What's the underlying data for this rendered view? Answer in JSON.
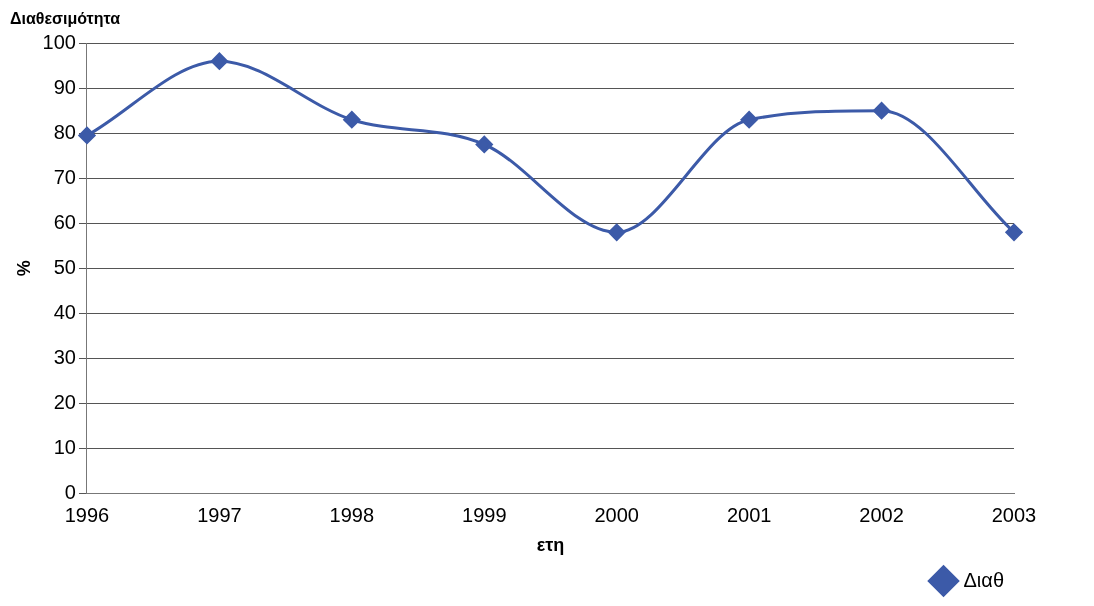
{
  "chart_data": {
    "type": "line",
    "title": "Διαθεσιμότητα",
    "xlabel": "ετη",
    "ylabel": "%",
    "categories": [
      "1996",
      "1997",
      "1998",
      "1999",
      "2000",
      "2001",
      "2002",
      "2003"
    ],
    "series": [
      {
        "name": "Διαθ",
        "color": "#3c5aa8",
        "values": [
          79.5,
          96,
          83,
          77.5,
          58,
          83,
          85,
          58
        ]
      }
    ],
    "ylim": [
      0,
      100
    ],
    "yticks": [
      0,
      10,
      20,
      30,
      40,
      50,
      60,
      70,
      80,
      90,
      100
    ],
    "grid": "y",
    "legend": "bottom right",
    "marker": "diamond",
    "line_style": "solid"
  }
}
